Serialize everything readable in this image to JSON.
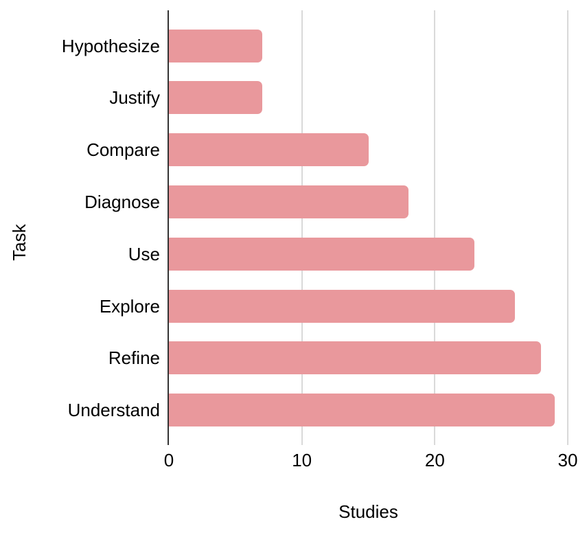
{
  "chart_data": {
    "type": "bar",
    "orientation": "horizontal",
    "title": "",
    "xlabel": "Studies",
    "ylabel": "Task",
    "categories": [
      "Hypothesize",
      "Justify",
      "Compare",
      "Diagnose",
      "Use",
      "Explore",
      "Refine",
      "Understand"
    ],
    "values": [
      7,
      7,
      15,
      18,
      23,
      26,
      28,
      29
    ],
    "xlim": [
      0,
      30
    ],
    "xticks": [
      0,
      10,
      20,
      30
    ],
    "grid": "vertical-gridlines-on",
    "legend": "none",
    "colors": {
      "bar": "#e9989c",
      "gridline": "#d9d9d9",
      "axis_line": "#333333",
      "text": "#000000",
      "background": "#ffffff"
    }
  }
}
